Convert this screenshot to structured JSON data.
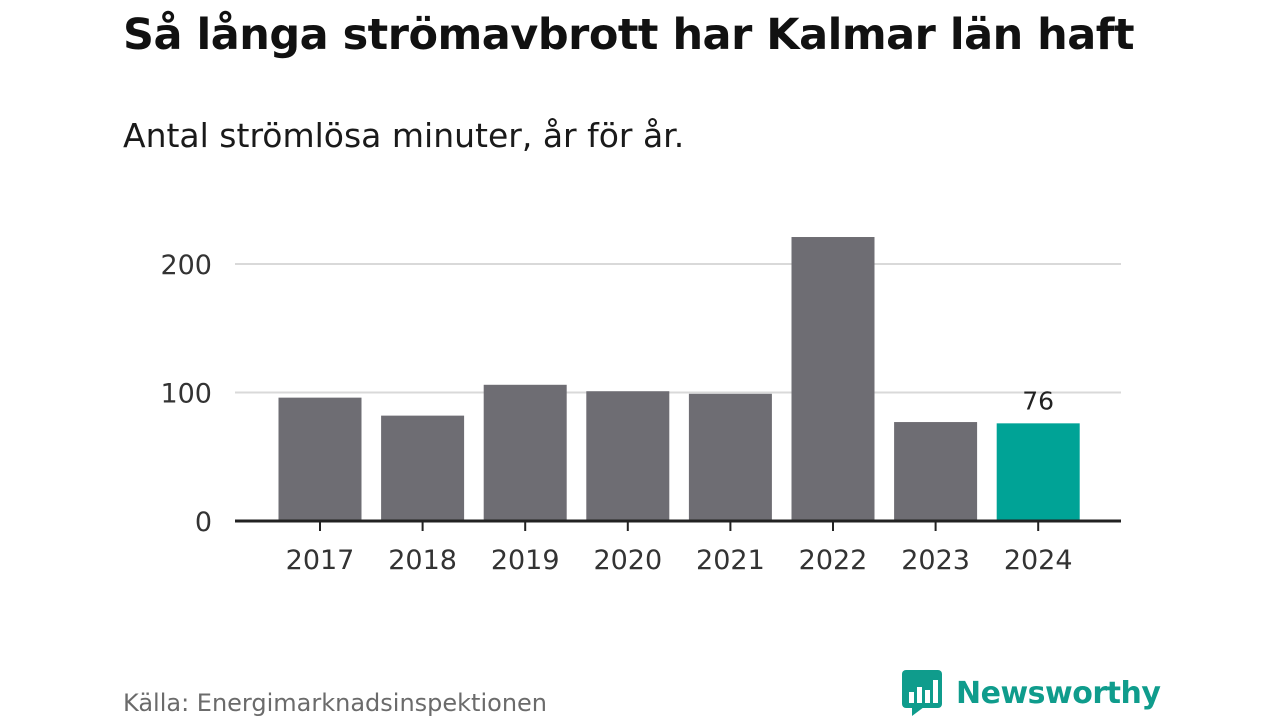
{
  "title": "Så långa strömavbrott har Kalmar län haft",
  "subtitle": "Antal strömlösa minuter, år för år.",
  "source": "Källa: Energimarknadsinspektionen",
  "brand": {
    "name": "Newsworthy",
    "icon": "newsworthy-logo-icon",
    "color": "#0f9c8c"
  },
  "colors": {
    "bar": "#6e6d73",
    "highlight": "#00a396",
    "grid": "#d9d9d9",
    "axis": "#222222",
    "text": "#333333"
  },
  "chart_data": {
    "type": "bar",
    "categories": [
      "2017",
      "2018",
      "2019",
      "2020",
      "2021",
      "2022",
      "2023",
      "2024"
    ],
    "values": [
      96,
      82,
      106,
      101,
      99,
      221,
      77,
      76
    ],
    "highlight_index": 7,
    "data_labels": [
      {
        "index": 7,
        "text": "76"
      }
    ],
    "ylim": [
      0,
      230
    ],
    "yticks": [
      0,
      100,
      200
    ],
    "grid": true,
    "xlabel": "",
    "ylabel": ""
  }
}
